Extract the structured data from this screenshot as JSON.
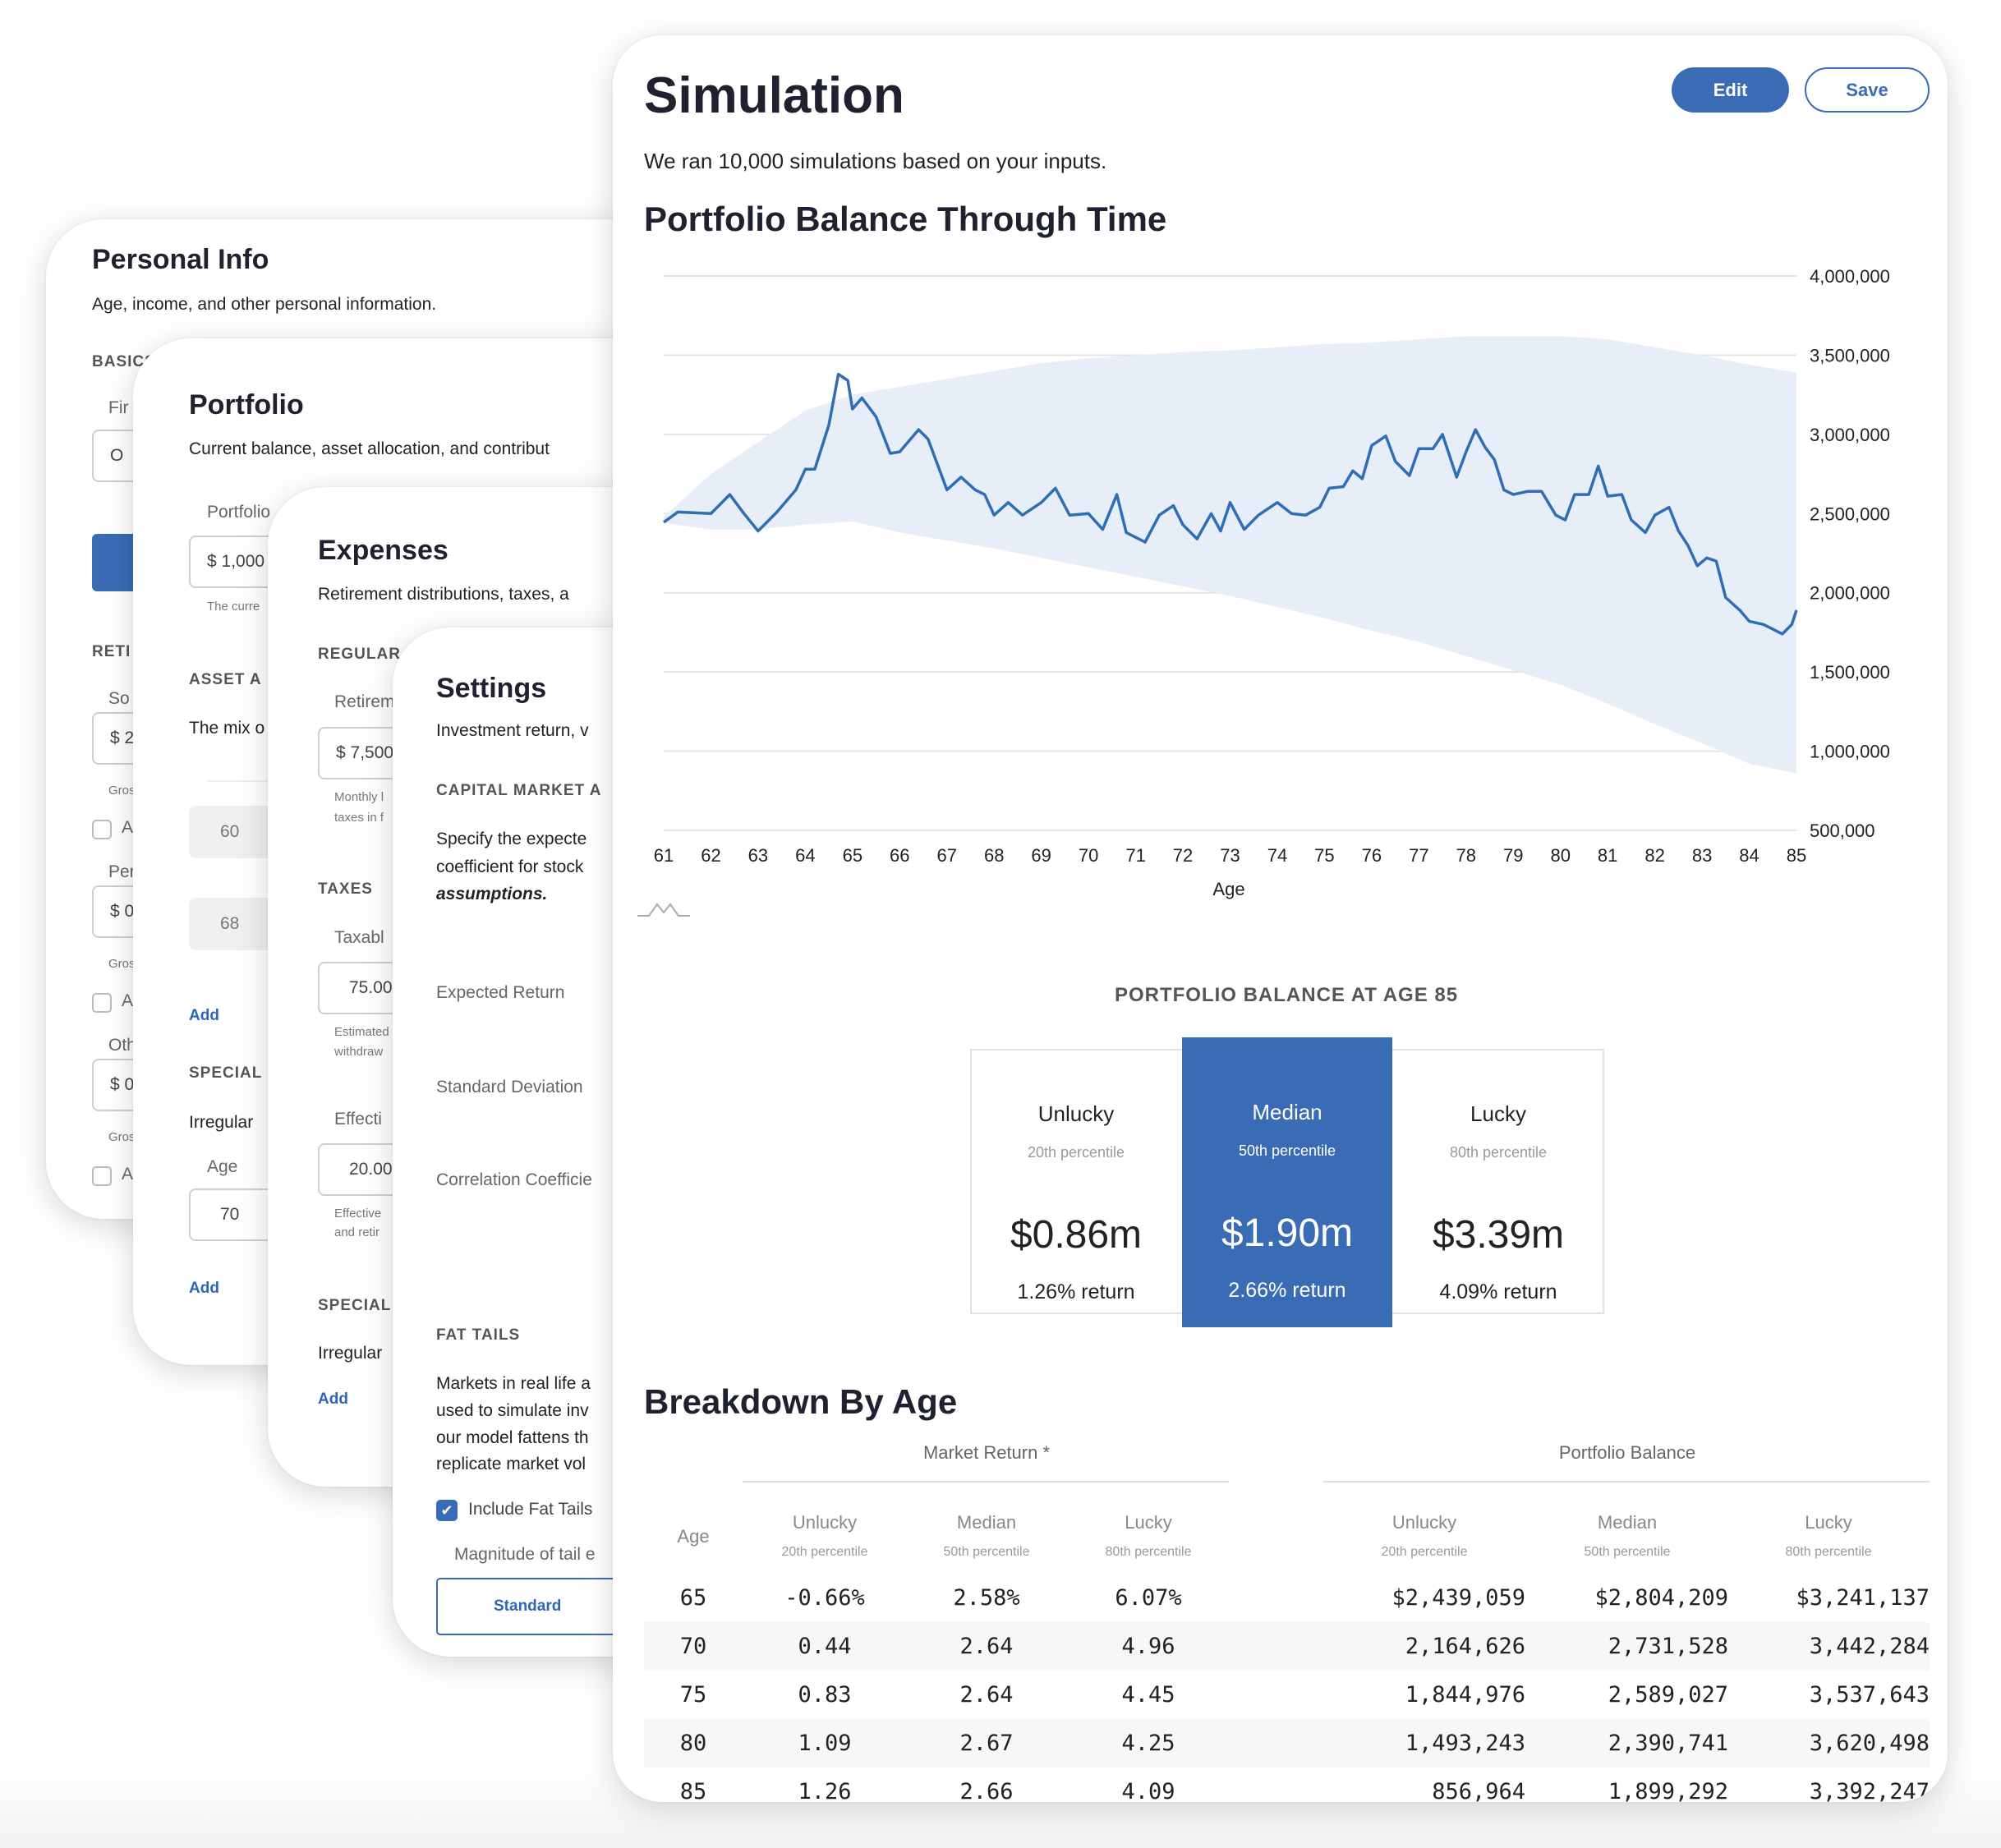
{
  "personal": {
    "title": "Personal Info",
    "description": "Age, income, and other personal information.",
    "basics": "BASICS",
    "first_label": "Fir",
    "first_value": "O",
    "retirement": "RETI",
    "social_label": "So",
    "social_value": "$ 2",
    "gross_1": "Gros",
    "check_1": "A",
    "pension_label": "Per",
    "pension_value": "$ 0",
    "gross_2": "Gros",
    "check_2": "A",
    "other_label": "Oth",
    "other_value": "$ 0",
    "gross_3": "Gros",
    "check_3": "A"
  },
  "portfolio": {
    "title": "Portfolio",
    "description": "Current balance, asset allocation, and contribut",
    "balance_label": "Portfolio",
    "balance_value": "$ 1,000",
    "balance_help": "The curre",
    "asset_section": "ASSET A",
    "asset_desc": "The mix o",
    "alloc_1": "60",
    "alloc_2": "68",
    "add_1": "Add",
    "special_section": "SPECIAL",
    "irregular": "Irregular",
    "age_label": "Age",
    "age_value": "70",
    "add_2": "Add"
  },
  "expenses": {
    "title": "Expenses",
    "description": "Retirement distributions, taxes, a",
    "regular_section": "REGULAR",
    "retirement_label": "Retirem",
    "retirement_value": "$ 7,500",
    "retirement_help_1": "Monthly l",
    "retirement_help_2": "taxes in f",
    "taxes_section": "TAXES",
    "taxable_label": "Taxabl",
    "taxable_value": "75.00",
    "taxable_help_1": "Estimated",
    "taxable_help_2": "withdraw",
    "effective_label": "Effecti",
    "effective_value": "20.00",
    "effective_help_1": "Effective",
    "effective_help_2": "and retir",
    "special_section": "SPECIAL",
    "irregular": "Irregular",
    "add": "Add"
  },
  "settings": {
    "title": "Settings",
    "description": "Investment return, v",
    "cma_section": "CAPITAL MARKET A",
    "cma_line_1": "Specify the expecte",
    "cma_line_2": "coefficient for stock",
    "cma_line_3": "assumptions.",
    "expected_return": "Expected Return",
    "std_dev": "Standard Deviation",
    "correlation": "Correlation Coefficie",
    "fat_tails_section": "FAT TAILS",
    "fat_line_1": "Markets in real life a",
    "fat_line_2": "used to simulate inv",
    "fat_line_3": "our model fattens th",
    "fat_line_4": "replicate market vol",
    "include_fat_tails": "Include Fat Tails",
    "include_checked": true,
    "magnitude_label": "Magnitude of tail e",
    "magnitude_value": "Standard"
  },
  "simulation": {
    "title": "Simulation",
    "edit_label": "Edit",
    "save_label": "Save",
    "subtitle": "We ran 10,000 simulations based on your inputs.",
    "chart_title": "Portfolio Balance Through Time",
    "summary": {
      "heading": "PORTFOLIO BALANCE AT AGE 85",
      "unlucky": {
        "label": "Unlucky",
        "percentile": "20th percentile",
        "value": "$0.86m",
        "return": "1.26% return"
      },
      "median": {
        "label": "Median",
        "percentile": "50th percentile",
        "value": "$1.90m",
        "return": "2.66% return"
      },
      "lucky": {
        "label": "Lucky",
        "percentile": "80th percentile",
        "value": "$3.39m",
        "return": "4.09% return"
      }
    },
    "breakdown": {
      "title": "Breakdown By Age",
      "group_market": "Market Return *",
      "group_portfolio": "Portfolio Balance",
      "age_header": "Age",
      "col_unlucky": "Unlucky",
      "col_unlucky_sub": "20th percentile",
      "col_median": "Median",
      "col_median_sub": "50th percentile",
      "col_lucky": "Lucky",
      "col_lucky_sub": "80th percentile",
      "rows": [
        {
          "age": "65",
          "mr_unlucky": "-0.66%",
          "mr_median": "2.58%",
          "mr_lucky": "6.07%",
          "pb_unlucky": "$2,439,059",
          "pb_median": "$2,804,209",
          "pb_lucky": "$3,241,137"
        },
        {
          "age": "70",
          "mr_unlucky": "0.44",
          "mr_median": "2.64",
          "mr_lucky": "4.96",
          "pb_unlucky": "2,164,626",
          "pb_median": "2,731,528",
          "pb_lucky": "3,442,284"
        },
        {
          "age": "75",
          "mr_unlucky": "0.83",
          "mr_median": "2.64",
          "mr_lucky": "4.45",
          "pb_unlucky": "1,844,976",
          "pb_median": "2,589,027",
          "pb_lucky": "3,537,643"
        },
        {
          "age": "80",
          "mr_unlucky": "1.09",
          "mr_median": "2.67",
          "mr_lucky": "4.25",
          "pb_unlucky": "1,493,243",
          "pb_median": "2,390,741",
          "pb_lucky": "3,620,498"
        },
        {
          "age": "85",
          "mr_unlucky": "1.26",
          "mr_median": "2.66",
          "mr_lucky": "4.09",
          "pb_unlucky": "856,964",
          "pb_median": "1,899,292",
          "pb_lucky": "3,392,247"
        }
      ]
    }
  },
  "colors": {
    "accent": "#3a6bb5",
    "band": "#e8eef7",
    "line": "#2f6db7"
  },
  "chart_data": {
    "type": "area",
    "title": "Portfolio Balance Through Time",
    "xlabel": "Age",
    "ylabel": "",
    "xlim": [
      61,
      85
    ],
    "ylim": [
      500000,
      4000000
    ],
    "x_ticks": [
      "61",
      "62",
      "63",
      "64",
      "65",
      "66",
      "67",
      "68",
      "69",
      "70",
      "71",
      "72",
      "73",
      "74",
      "75",
      "76",
      "77",
      "78",
      "79",
      "80",
      "81",
      "82",
      "83",
      "84",
      "85"
    ],
    "y_ticks": [
      "4,000,000",
      "3,500,000",
      "3,000,000",
      "2,500,000",
      "2,000,000",
      "1,500,000",
      "1,000,000",
      "500,000"
    ],
    "y_tick_values": [
      4000000,
      3500000,
      3000000,
      2500000,
      2000000,
      1500000,
      1000000,
      500000
    ],
    "grid": true,
    "band": {
      "name": "20th-80th percentile range",
      "x": [
        61,
        62,
        63,
        64,
        65,
        66,
        67,
        68,
        69,
        70,
        71,
        72,
        73,
        74,
        75,
        76,
        77,
        78,
        79,
        80,
        81,
        82,
        83,
        84,
        85
      ],
      "upper": [
        2480000,
        2750000,
        2950000,
        3150000,
        3250000,
        3300000,
        3350000,
        3400000,
        3450000,
        3480000,
        3500000,
        3520000,
        3530000,
        3550000,
        3570000,
        3580000,
        3600000,
        3620000,
        3620000,
        3620000,
        3600000,
        3550000,
        3500000,
        3440000,
        3390000
      ],
      "lower": [
        2440000,
        2400000,
        2400000,
        2430000,
        2450000,
        2380000,
        2330000,
        2280000,
        2220000,
        2160000,
        2100000,
        2040000,
        1980000,
        1910000,
        1840000,
        1760000,
        1690000,
        1600000,
        1510000,
        1420000,
        1300000,
        1170000,
        1050000,
        920000,
        860000
      ]
    },
    "series": [
      {
        "name": "Sample path",
        "x": [
          61,
          61.3,
          62,
          62.4,
          62.7,
          63,
          63.4,
          63.8,
          64,
          64.2,
          64.5,
          64.7,
          64.9,
          65,
          65.2,
          65.5,
          65.8,
          66,
          66.4,
          66.6,
          67,
          67.3,
          67.6,
          67.8,
          68,
          68.3,
          68.6,
          69,
          69.3,
          69.6,
          70,
          70.3,
          70.6,
          70.8,
          71.2,
          71.5,
          71.8,
          72,
          72.3,
          72.6,
          72.8,
          73,
          73.3,
          73.6,
          74,
          74.3,
          74.6,
          74.9,
          75.1,
          75.4,
          75.6,
          75.8,
          76,
          76.3,
          76.5,
          76.8,
          77,
          77.3,
          77.5,
          77.8,
          78,
          78.2,
          78.4,
          78.6,
          78.8,
          79,
          79.3,
          79.6,
          79.9,
          80.1,
          80.3,
          80.6,
          80.8,
          81,
          81.3,
          81.5,
          81.8,
          82,
          82.3,
          82.5,
          82.7,
          82.9,
          83.1,
          83.3,
          83.5,
          83.8,
          84,
          84.3,
          84.5,
          84.7,
          84.9,
          85
        ],
        "values": [
          2445000,
          2510000,
          2500000,
          2620000,
          2500000,
          2390000,
          2510000,
          2650000,
          2780000,
          2780000,
          3060000,
          3380000,
          3340000,
          3160000,
          3230000,
          3110000,
          2880000,
          2890000,
          3030000,
          2970000,
          2650000,
          2730000,
          2650000,
          2620000,
          2490000,
          2570000,
          2490000,
          2570000,
          2660000,
          2490000,
          2500000,
          2400000,
          2620000,
          2380000,
          2320000,
          2490000,
          2550000,
          2430000,
          2340000,
          2500000,
          2390000,
          2570000,
          2400000,
          2490000,
          2570000,
          2500000,
          2490000,
          2540000,
          2660000,
          2670000,
          2770000,
          2720000,
          2930000,
          2990000,
          2830000,
          2740000,
          2910000,
          2910000,
          3000000,
          2730000,
          2890000,
          3030000,
          2920000,
          2840000,
          2650000,
          2620000,
          2640000,
          2640000,
          2490000,
          2460000,
          2620000,
          2620000,
          2800000,
          2610000,
          2620000,
          2460000,
          2380000,
          2490000,
          2540000,
          2390000,
          2300000,
          2170000,
          2220000,
          2200000,
          1970000,
          1890000,
          1820000,
          1800000,
          1770000,
          1740000,
          1800000,
          1890000
        ]
      }
    ]
  }
}
